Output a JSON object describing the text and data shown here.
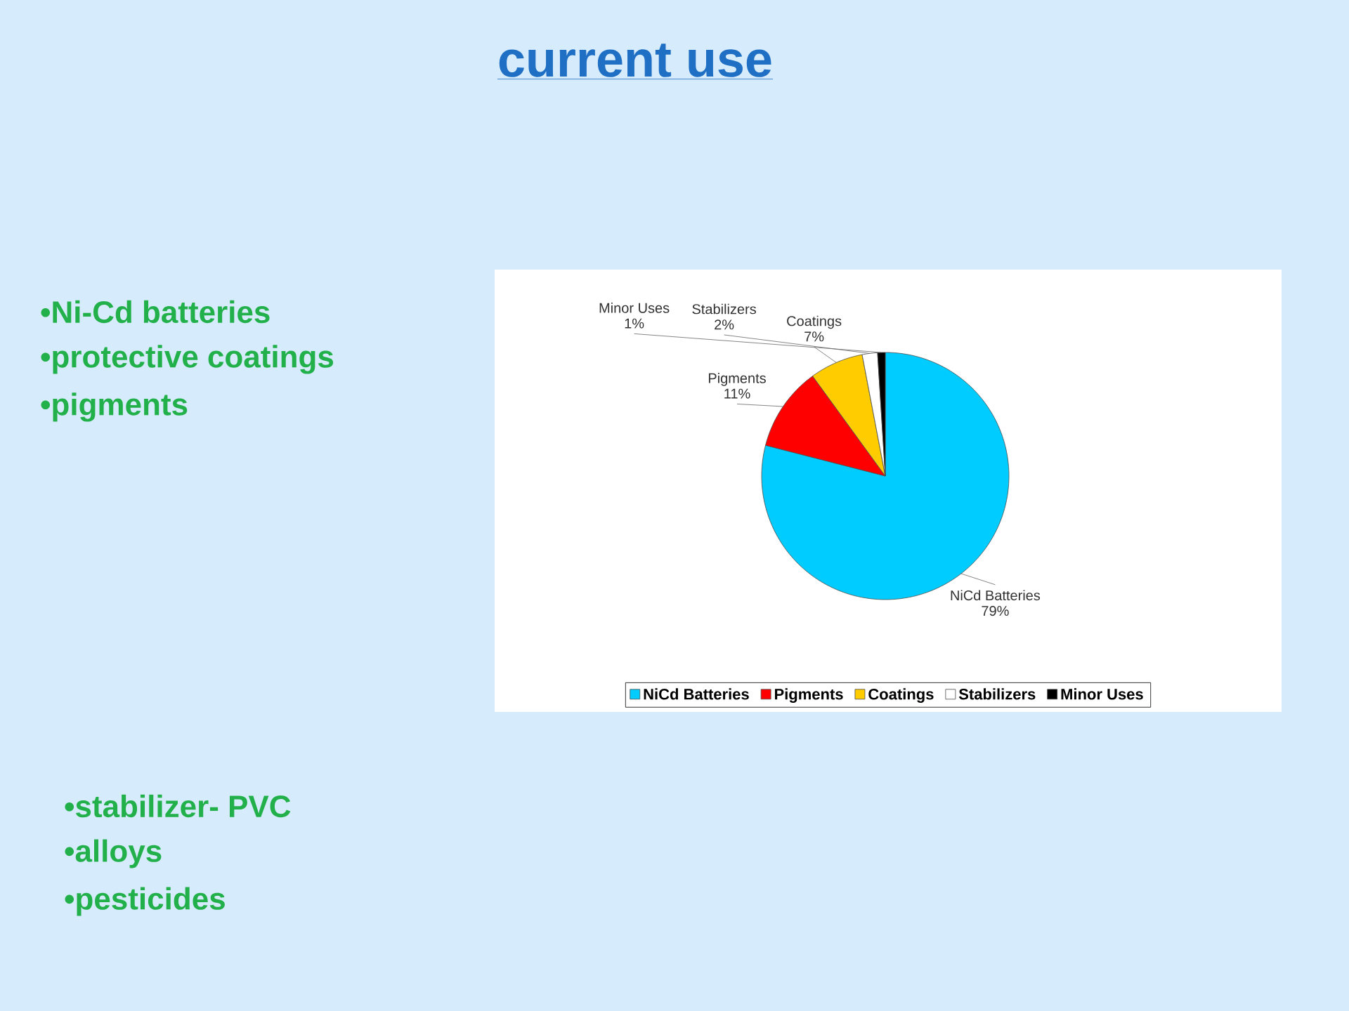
{
  "chart_data": {
    "type": "pie",
    "title": "current use",
    "categories": [
      "NiCd Batteries",
      "Pigments",
      "Coatings",
      "Stabilizers",
      "Minor Uses"
    ],
    "values": [
      79,
      11,
      7,
      2,
      1
    ],
    "value_labels": [
      "79%",
      "11%",
      "7%",
      "2%",
      "1%"
    ],
    "colors": [
      "#00ccff",
      "#ff0000",
      "#ffcc00",
      "#ffffff",
      "#000000"
    ],
    "legend": "bottom",
    "annotations": [
      "•Ni-Cd batteries",
      "•protective coatings",
      "•pigments",
      "•stabilizer- PVC",
      "•alloys",
      "•pesticides"
    ]
  }
}
